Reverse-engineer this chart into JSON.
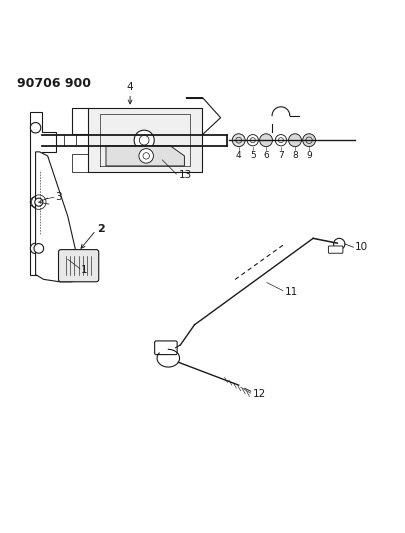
{
  "title": "90706 900",
  "bg_color": "#ffffff",
  "line_color": "#1a1a1a",
  "title_fontsize": 9,
  "label_fontsize": 7.5,
  "figsize": [
    4.05,
    5.33
  ],
  "dpi": 100
}
